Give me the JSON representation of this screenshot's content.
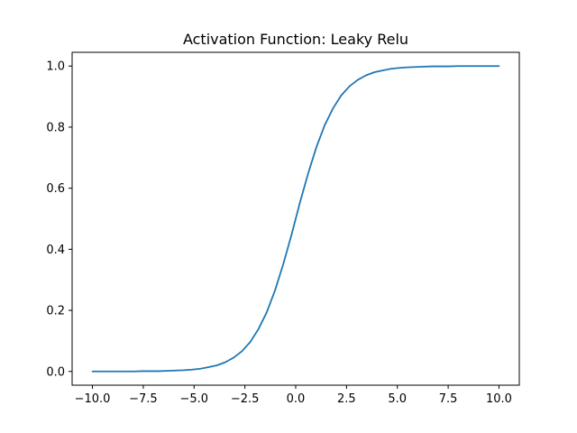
{
  "chart_data": {
    "type": "line",
    "title": "Activation Function: Leaky Relu",
    "xlabel": "",
    "ylabel": "",
    "xlim": [
      -11.0,
      11.0
    ],
    "ylim": [
      -0.045,
      1.045
    ],
    "grid": false,
    "x_ticks": [
      -10.0,
      -7.5,
      -5.0,
      -2.5,
      0.0,
      2.5,
      5.0,
      7.5,
      10.0
    ],
    "x_tick_labels": [
      "−10.0",
      "−7.5",
      "−5.0",
      "−2.5",
      "0.0",
      "2.5",
      "5.0",
      "7.5",
      "10.0"
    ],
    "y_ticks": [
      0.0,
      0.2,
      0.4,
      0.6,
      0.8,
      1.0
    ],
    "y_tick_labels": [
      "0.0",
      "0.2",
      "0.4",
      "0.6",
      "0.8",
      "1.0"
    ],
    "series": [
      {
        "color": "#1f77b4",
        "x": [
          -10.0,
          -9.59,
          -9.18,
          -8.78,
          -8.37,
          -7.96,
          -7.55,
          -7.14,
          -6.73,
          -6.33,
          -5.92,
          -5.51,
          -5.1,
          -4.69,
          -4.29,
          -3.88,
          -3.47,
          -3.06,
          -2.65,
          -2.24,
          -1.84,
          -1.43,
          -1.02,
          -0.61,
          -0.2,
          0.2,
          0.61,
          1.02,
          1.43,
          1.84,
          2.24,
          2.65,
          3.06,
          3.47,
          3.88,
          4.29,
          4.69,
          5.1,
          5.51,
          5.92,
          6.33,
          6.73,
          7.14,
          7.55,
          7.96,
          8.37,
          8.78,
          9.18,
          9.59,
          10.0
        ],
        "y": [
          0.0,
          0.0,
          0.0,
          0.0,
          0.0,
          0.0,
          0.001,
          0.001,
          0.001,
          0.002,
          0.003,
          0.004,
          0.006,
          0.009,
          0.014,
          0.02,
          0.03,
          0.045,
          0.066,
          0.096,
          0.138,
          0.193,
          0.265,
          0.352,
          0.449,
          0.551,
          0.648,
          0.735,
          0.807,
          0.862,
          0.904,
          0.934,
          0.955,
          0.97,
          0.98,
          0.986,
          0.991,
          0.994,
          0.996,
          0.997,
          0.998,
          0.999,
          0.999,
          0.999,
          1.0,
          1.0,
          1.0,
          1.0,
          1.0,
          1.0
        ]
      }
    ]
  }
}
